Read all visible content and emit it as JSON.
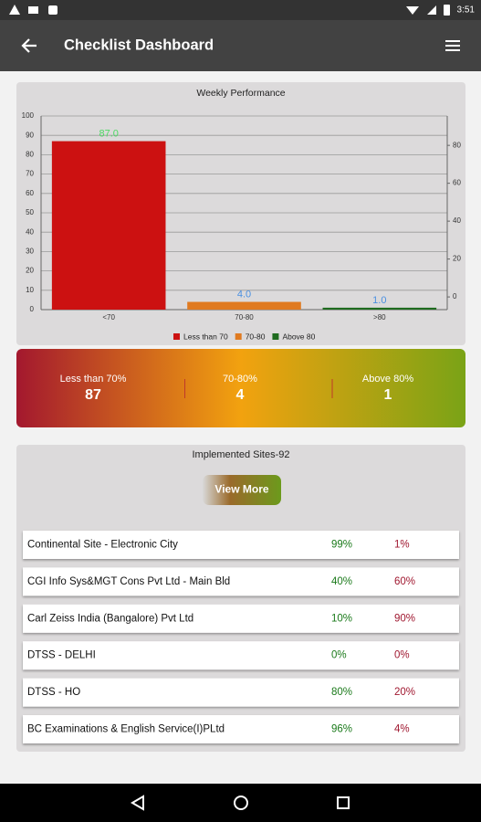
{
  "status_bar": {
    "time": "3:51"
  },
  "app_bar": {
    "title": "Checklist Dashboard"
  },
  "chart_data": {
    "type": "bar",
    "title": "Weekly Performance",
    "categories": [
      "<70",
      "70-80",
      ">80"
    ],
    "values": [
      87,
      4,
      1
    ],
    "value_labels": [
      "87.0",
      "4.0",
      "1.0"
    ],
    "value_label_colors": [
      "#4cd964",
      "#4a90e2",
      "#4a90e2"
    ],
    "colors": [
      "#cc1111",
      "#e07a20",
      "#1f6b1f"
    ],
    "legend": [
      "Less than 70",
      "70-80",
      "Above 80"
    ],
    "ylim": [
      0,
      100
    ],
    "yticks": [
      0,
      10,
      20,
      30,
      40,
      50,
      60,
      70,
      80,
      90,
      100
    ],
    "y2lim": [
      -6.7,
      95.5
    ],
    "y2ticks": [
      0,
      20,
      40,
      60,
      80
    ],
    "grid": true
  },
  "summary": [
    {
      "label": "Less than 70%",
      "value": 87
    },
    {
      "label": "70-80%",
      "value": 4
    },
    {
      "label": "Above 80%",
      "value": 1
    }
  ],
  "sites": {
    "title": "Implemented Sites-92",
    "button": "View More",
    "rows": [
      [
        "Continental Site - Electronic City",
        "99%",
        "1%"
      ],
      [
        "CGI Info Sys&MGT Cons Pvt Ltd - Main Bld",
        "40%",
        "60%"
      ],
      [
        "Carl Zeiss India (Bangalore) Pvt Ltd",
        "10%",
        "90%"
      ],
      [
        "DTSS - DELHI",
        "0%",
        "0%"
      ],
      [
        "DTSS - HO",
        "80%",
        "20%"
      ],
      [
        "BC Examinations & English Service(I)PLtd",
        "96%",
        "4%"
      ]
    ]
  }
}
